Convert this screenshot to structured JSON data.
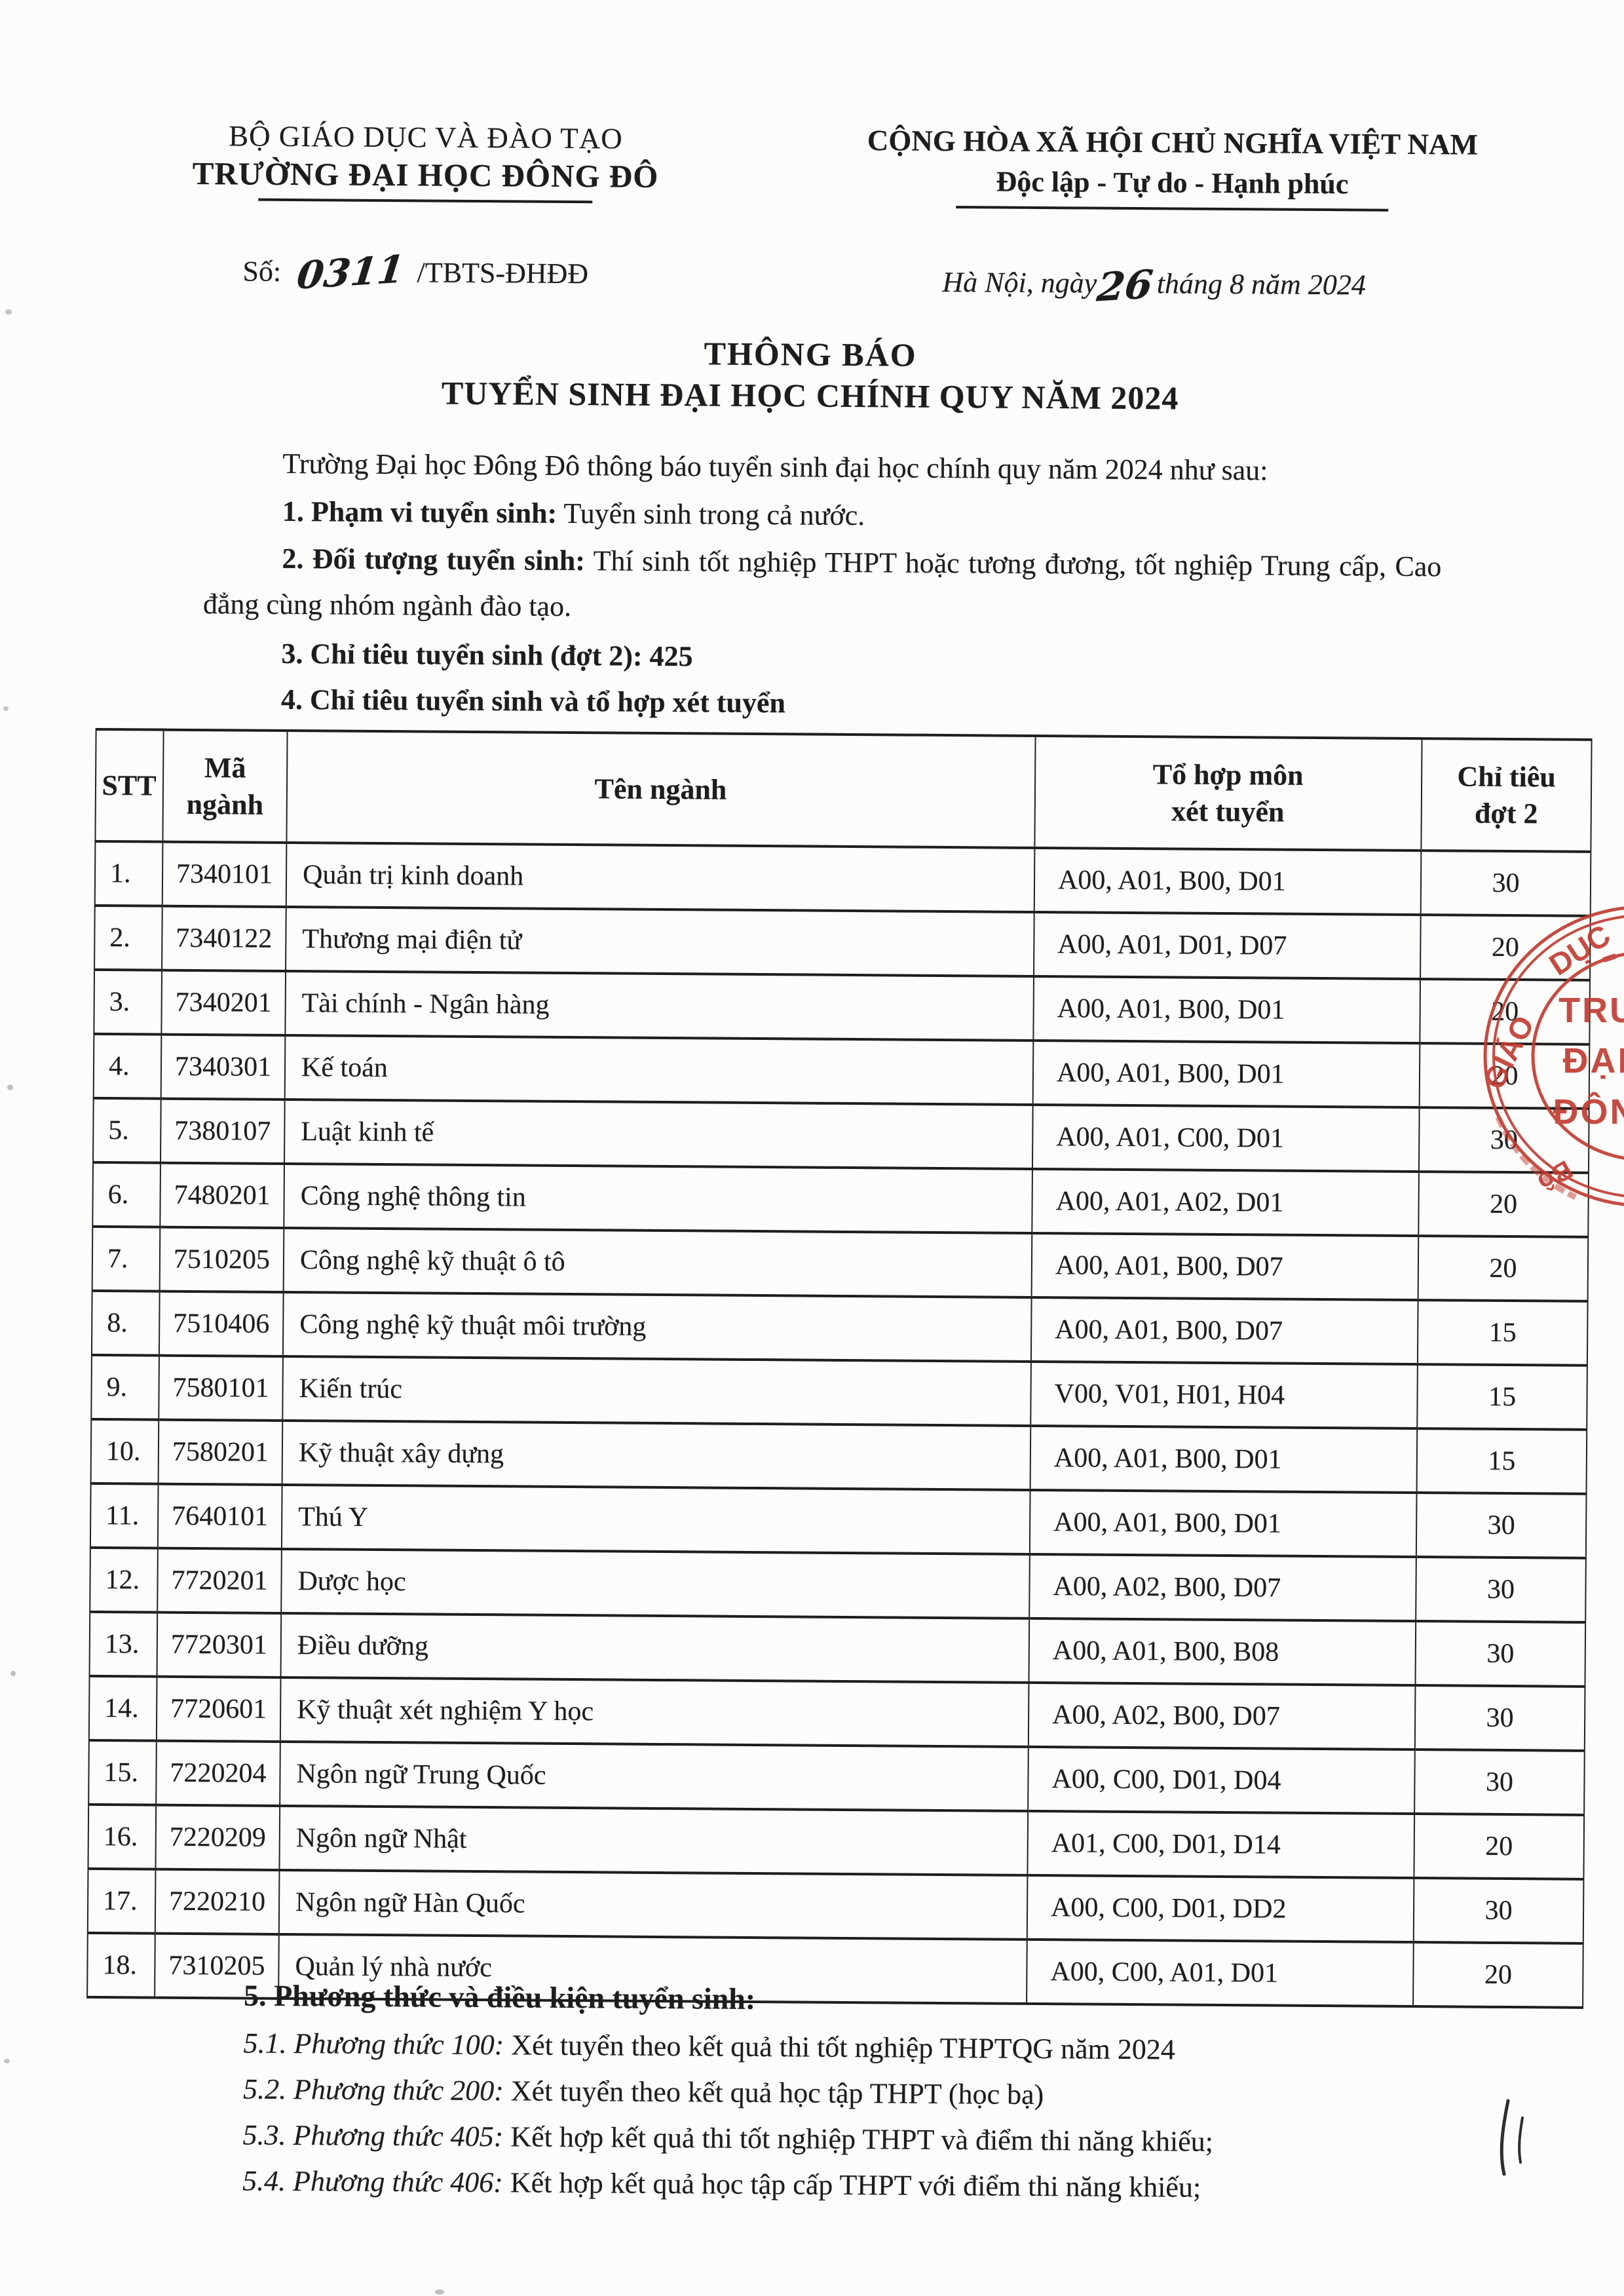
{
  "colors": {
    "stamp_red": "#c03a30",
    "ink": "#1d1d1d"
  },
  "header": {
    "agency": {
      "line1": "BỘ GIÁO DỤC VÀ ĐÀO TẠO",
      "line2": "TRƯỜNG ĐẠI HỌC ĐÔNG ĐÔ"
    },
    "motto": {
      "line1": "CỘNG HÒA XÃ HỘI CHỦ NGHĨA VIỆT NAM",
      "line2": "Độc lập - Tự do - Hạnh phúc"
    },
    "doc_number": {
      "label": "Số:",
      "handwritten": "0311",
      "suffix": "/TBTS-ĐHĐĐ"
    },
    "dateline": {
      "prefix": "Hà Nội, ngày",
      "day": "26",
      "suffix": "tháng 8 năm 2024"
    }
  },
  "title": {
    "line1": "THÔNG BÁO",
    "line2": "TUYỂN SINH ĐẠI HỌC CHÍNH QUY NĂM 2024"
  },
  "intro": "Trường Đại học Đông Đô thông báo tuyển sinh đại học chính quy năm 2024 như sau:",
  "items": [
    {
      "label": "1. Phạm vi tuyển sinh:",
      "text": " Tuyển sinh trong cả nước."
    },
    {
      "label": "2. Đối tượng tuyển sinh:",
      "text": " Thí sinh tốt nghiệp THPT hoặc tương đương, tốt nghiệp Trung cấp, Cao đẳng cùng nhóm ngành đào tạo."
    },
    {
      "label": "3. Chỉ tiêu tuyển sinh (đợt 2): 425",
      "text": ""
    },
    {
      "label": "4. Chỉ tiêu tuyển sinh và tổ hợp xét tuyển",
      "text": ""
    }
  ],
  "table": {
    "headers": [
      {
        "lines": [
          "STT"
        ]
      },
      {
        "lines": [
          "Mã",
          "ngành"
        ]
      },
      {
        "lines": [
          "Tên ngành"
        ]
      },
      {
        "lines": [
          "Tổ hợp môn",
          "xét tuyển"
        ]
      },
      {
        "lines": [
          "Chỉ tiêu",
          "đợt 2"
        ]
      }
    ],
    "rows": [
      {
        "stt": "1.",
        "code": "7340101",
        "name": "Quản trị kinh doanh",
        "combos": "A00, A01, B00, D01",
        "quota": "30"
      },
      {
        "stt": "2.",
        "code": "7340122",
        "name": "Thương mại điện tử",
        "combos": "A00, A01, D01, D07",
        "quota": "20"
      },
      {
        "stt": "3.",
        "code": "7340201",
        "name": "Tài chính - Ngân hàng",
        "combos": "A00, A01, B00, D01",
        "quota": "20"
      },
      {
        "stt": "4.",
        "code": "7340301",
        "name": "Kế toán",
        "combos": "A00, A01, B00, D01",
        "quota": "20"
      },
      {
        "stt": "5.",
        "code": "7380107",
        "name": "Luật kinh tế",
        "combos": "A00, A01, C00, D01",
        "quota": "30"
      },
      {
        "stt": "6.",
        "code": "7480201",
        "name": "Công nghệ thông tin",
        "combos": "A00, A01, A02, D01",
        "quota": "20"
      },
      {
        "stt": "7.",
        "code": "7510205",
        "name": "Công nghệ kỹ thuật ô tô",
        "combos": "A00, A01, B00, D07",
        "quota": "20"
      },
      {
        "stt": "8.",
        "code": "7510406",
        "name": "Công nghệ kỹ thuật môi trường",
        "combos": "A00, A01, B00, D07",
        "quota": "15"
      },
      {
        "stt": "9.",
        "code": "7580101",
        "name": "Kiến trúc",
        "combos": "V00, V01, H01, H04",
        "quota": "15"
      },
      {
        "stt": "10.",
        "code": "7580201",
        "name": "Kỹ thuật xây dựng",
        "combos": "A00, A01, B00, D01",
        "quota": "15"
      },
      {
        "stt": "11.",
        "code": "7640101",
        "name": "Thú Y",
        "combos": "A00, A01, B00, D01",
        "quota": "30"
      },
      {
        "stt": "12.",
        "code": "7720201",
        "name": "Dược học",
        "combos": "A00, A02, B00, D07",
        "quota": "30"
      },
      {
        "stt": "13.",
        "code": "7720301",
        "name": "Điều dưỡng",
        "combos": "A00, A01, B00, B08",
        "quota": "30"
      },
      {
        "stt": "14.",
        "code": "7720601",
        "name": "Kỹ thuật xét nghiệm Y học",
        "combos": "A00, A02, B00, D07",
        "quota": "30"
      },
      {
        "stt": "15.",
        "code": "7220204",
        "name": "Ngôn ngữ Trung Quốc",
        "combos": "A00, C00, D01, D04",
        "quota": "30"
      },
      {
        "stt": "16.",
        "code": "7220209",
        "name": "Ngôn ngữ Nhật",
        "combos": "A01, C00, D01, D14",
        "quota": "20"
      },
      {
        "stt": "17.",
        "code": "7220210",
        "name": "Ngôn ngữ Hàn Quốc",
        "combos": "A00, C00, D01, DD2",
        "quota": "30"
      },
      {
        "stt": "18.",
        "code": "7310205",
        "name": "Quản lý nhà nước",
        "combos": "A00, C00, A01, D01",
        "quota": "20"
      }
    ]
  },
  "section5": {
    "heading": "5. Phương thức và điều kiện tuyển sinh:",
    "items": [
      {
        "num": "5.1.",
        "method": "Phương thức 100:",
        "text": " Xét tuyển theo kết quả thi tốt nghiệp THPTQG năm 2024"
      },
      {
        "num": "5.2.",
        "method": "Phương thức 200:",
        "text": " Xét tuyển theo kết quả học tập THPT (học bạ)"
      },
      {
        "num": "5.3.",
        "method": "Phương thức 405:",
        "text": " Kết hợp kết quả thi tốt nghiệp THPT và điểm thi năng khiếu;"
      },
      {
        "num": "5.4.",
        "method": "Phương thức 406:",
        "text": " Kết hợp kết quả học tập cấp THPT với điểm thi năng khiếu;"
      }
    ]
  },
  "stamp": {
    "ring_top": "DỤC",
    "ring_left": "GIÁO",
    "ring_bottom": "Bộ",
    "center_line1": "TRƯỜNG",
    "center_line2": "ĐẠI HỌC",
    "center_line3": "ĐÔNG ĐÔ"
  }
}
